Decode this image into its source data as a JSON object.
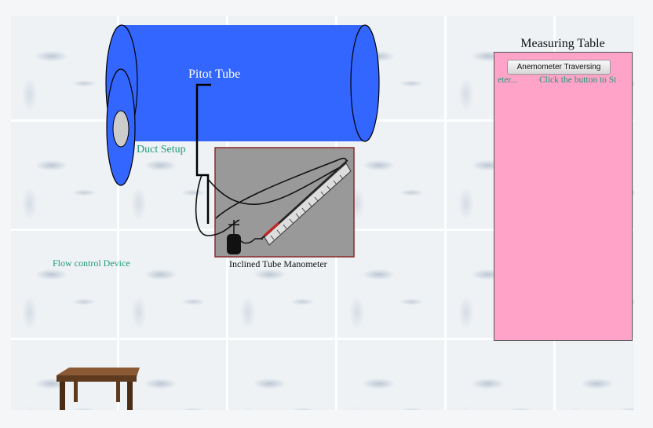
{
  "duct": {
    "pitot_label": "Pitot Tube",
    "duct_label": "Duct Setup"
  },
  "labels": {
    "flow_control": "Flow control Device",
    "manometer": "Inclined Tube Manometer"
  },
  "measuring_table": {
    "title": "Measuring Table",
    "button_label": "Anemometer Traversing",
    "scroll_left": "eter...",
    "scroll_right": "Click the button to St"
  },
  "colors": {
    "duct_blue": "#3366ff",
    "panel_pink": "#ffa3c8",
    "teal_text": "#1e9a7a",
    "manometer_gray": "#999999"
  }
}
